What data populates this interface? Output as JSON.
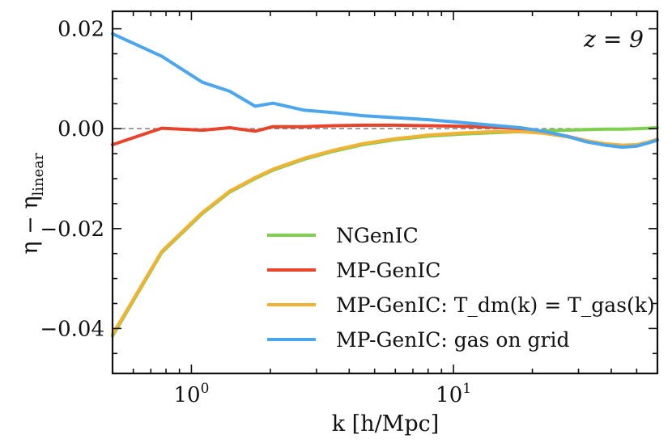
{
  "chart_data": {
    "type": "line",
    "title": "",
    "annotation": "z = 9",
    "xlabel": "k [h/Mpc]",
    "ylabel": "η − η_linear",
    "ylabel_main": "η − η",
    "ylabel_sub": "linear",
    "xscale": "log",
    "xlim": [
      0.5,
      60
    ],
    "ylim": [
      -0.049,
      0.0235
    ],
    "x_major_ticks": [
      1,
      10
    ],
    "x_tick_labels": [
      "10",
      "10"
    ],
    "x_tick_exponents": [
      "0",
      "1"
    ],
    "y_ticks": [
      0.02,
      0.0,
      -0.02,
      -0.04
    ],
    "y_tick_labels": [
      "0.02",
      "0.00",
      "−0.02",
      "−0.04"
    ],
    "reference_line": {
      "y": 0.0,
      "style": "dashed",
      "color": "#888888"
    },
    "legend_position": "lower-center",
    "series": [
      {
        "name": "NGenIC",
        "color": "#7fcf4f",
        "x": [
          0.5,
          0.77,
          1.1,
          1.4,
          1.75,
          2.05,
          2.7,
          3.5,
          4.5,
          6,
          8,
          10.5,
          14,
          18,
          22,
          27,
          32,
          38,
          44,
          50,
          55,
          60
        ],
        "y": [
          -0.0415,
          -0.0248,
          -0.017,
          -0.0127,
          -0.01,
          -0.0083,
          -0.0061,
          -0.0045,
          -0.0032,
          -0.0022,
          -0.0015,
          -0.0011,
          -0.0008,
          -0.0006,
          -0.0004,
          -0.0003,
          -0.0002,
          -0.0001,
          -0.0001,
          0.0,
          0.0001,
          0.0002
        ]
      },
      {
        "name": "MP-GenIC",
        "color": "#e8432b",
        "x": [
          0.5,
          0.77,
          1.1,
          1.4,
          1.75,
          2.05,
          2.7,
          3.5,
          4.5,
          6,
          8,
          10.5,
          14,
          18,
          22,
          27,
          32,
          38,
          44,
          50,
          55,
          60
        ],
        "y": [
          -0.0032,
          0.0001,
          -0.0003,
          0.0002,
          -0.0005,
          0.0004,
          0.0004,
          0.0006,
          0.0007,
          0.0007,
          0.0006,
          0.0005,
          0.0003,
          0.0,
          -0.0006,
          -0.0015,
          -0.0024,
          -0.0031,
          -0.0035,
          -0.0034,
          -0.0028,
          -0.0022
        ]
      },
      {
        "name": "MP-GenIC: T_dm(k) = T_gas(k)",
        "color": "#f0b233",
        "x": [
          0.5,
          0.77,
          1.1,
          1.4,
          1.75,
          2.05,
          2.7,
          3.5,
          4.5,
          6,
          8,
          10.5,
          14,
          18,
          22,
          27,
          32,
          38,
          44,
          50,
          55,
          60
        ],
        "y": [
          -0.0412,
          -0.0246,
          -0.0168,
          -0.0125,
          -0.0098,
          -0.0081,
          -0.0059,
          -0.0043,
          -0.003,
          -0.002,
          -0.0013,
          -0.0009,
          -0.0006,
          -0.0006,
          -0.0009,
          -0.0016,
          -0.0024,
          -0.003,
          -0.0033,
          -0.0032,
          -0.0027,
          -0.0021
        ]
      },
      {
        "name": "MP-GenIC: gas on grid",
        "color": "#4ba6ee",
        "x": [
          0.5,
          0.77,
          1.1,
          1.4,
          1.75,
          2.05,
          2.7,
          3.5,
          4.5,
          6,
          8,
          10.5,
          14,
          18,
          22,
          27,
          32,
          38,
          44,
          50,
          55,
          60
        ],
        "y": [
          0.019,
          0.0145,
          0.0093,
          0.0075,
          0.0045,
          0.0051,
          0.0037,
          0.0032,
          0.0026,
          0.0022,
          0.0018,
          0.0013,
          0.0007,
          0.0002,
          -0.0005,
          -0.0015,
          -0.0026,
          -0.0033,
          -0.0037,
          -0.0035,
          -0.0029,
          -0.0023
        ]
      }
    ]
  }
}
